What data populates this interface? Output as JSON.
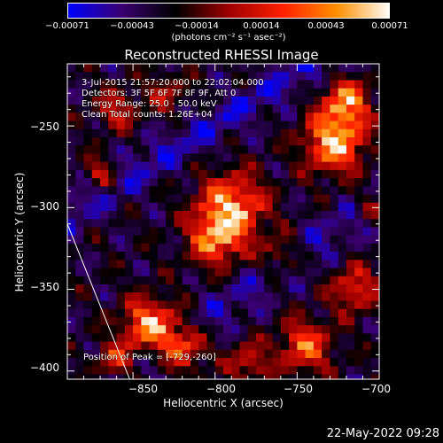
{
  "chart_data": {
    "type": "heatmap",
    "title": "Reconstructed RHESSI Image",
    "xlabel": "Heliocentric X (arcsec)",
    "ylabel": "Heliocentric Y (arcsec)",
    "xlim": [
      -890,
      -700
    ],
    "ylim": [
      -405,
      -212
    ],
    "xticks": [
      -850,
      -800,
      -750,
      -700
    ],
    "xtick_labels": [
      "−850",
      "−800",
      "−750",
      "−700"
    ],
    "yticks": [
      -250,
      -300,
      -350,
      -400
    ],
    "ytick_labels": [
      "−250",
      "−300",
      "−350",
      "−400"
    ],
    "colorbar": {
      "range": [
        -0.00071,
        0.00071
      ],
      "tick_labels": [
        "−0.00071",
        "−0.00043",
        "−0.00014",
        "0.00014",
        "0.00043",
        "0.00071"
      ],
      "unit_label": "(photons cm⁻² s⁻¹ asec⁻²)",
      "colors": [
        "#0000ff",
        "#3a0070",
        "#000000",
        "#a00000",
        "#ff2000",
        "#ff9000",
        "#ffffff"
      ]
    },
    "annotations": {
      "time_range": "3-Jul-2015 21:57:20.000 to 22:02:04.000",
      "detectors": "Detectors: 3F 5F 6F 7F 8F 9F, Att 0",
      "energy": "Energy Range: 25.0 - 50.0 keV",
      "clean": "Clean   Total counts: 1.26E+04",
      "peak": "Position of Peak = [-729,-260]"
    },
    "peak_position": [
      -729,
      -260
    ],
    "limb_line": [
      [
        -890,
        -310
      ],
      [
        -852,
        -405
      ]
    ]
  },
  "footer": {
    "timestamp": "22-May-2022 09:28"
  }
}
